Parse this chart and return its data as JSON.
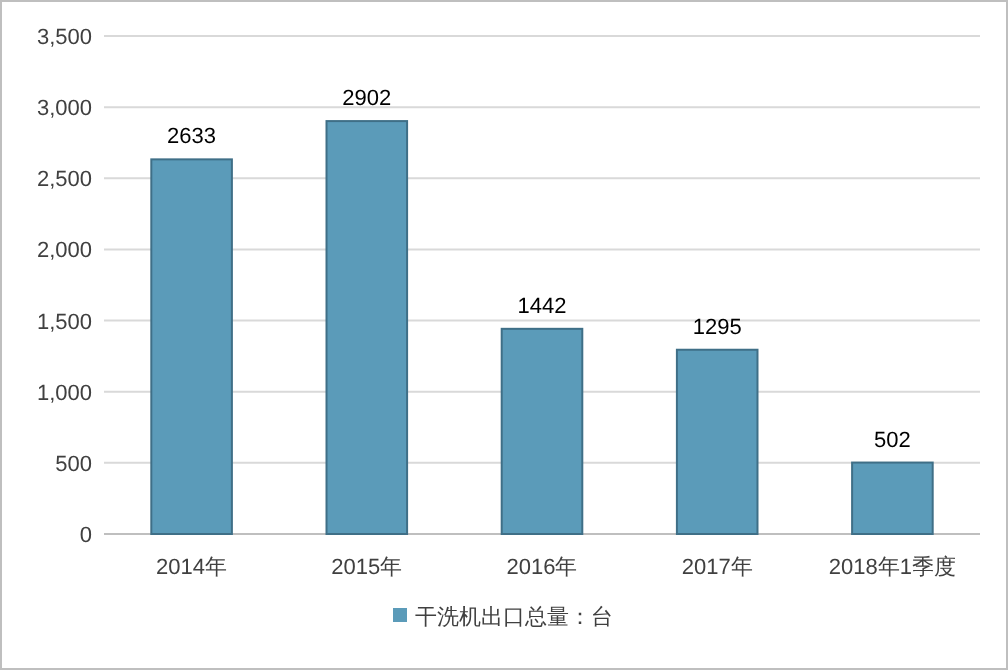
{
  "chart_data": {
    "type": "bar",
    "categories": [
      "2014年",
      "2015年",
      "2016年",
      "2017年",
      "2018年1季度"
    ],
    "series": [
      {
        "name": "干洗机出口总量：台",
        "color": "#5b9bb9",
        "values": [
          2633,
          2902,
          1442,
          1295,
          502
        ]
      }
    ],
    "ylim": [
      0,
      3500
    ],
    "yticks": [
      {
        "value": 0,
        "label": "0"
      },
      {
        "value": 500,
        "label": "500"
      },
      {
        "value": 1000,
        "label": "1,000"
      },
      {
        "value": 1500,
        "label": "1,500"
      },
      {
        "value": 2000,
        "label": "2,000"
      },
      {
        "value": 2500,
        "label": "2,500"
      },
      {
        "value": 3000,
        "label": "3,000"
      },
      {
        "value": 3500,
        "label": "3,500"
      }
    ],
    "grid": "y",
    "legend": "bottom",
    "data_labels": true
  }
}
